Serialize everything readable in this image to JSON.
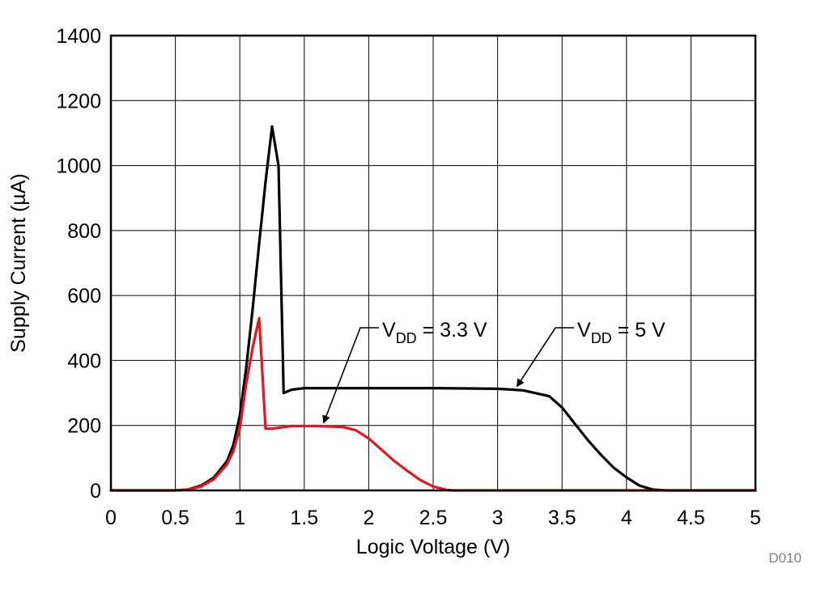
{
  "chart_data": {
    "type": "line",
    "title": "",
    "xlabel": "Logic Voltage (V)",
    "ylabel": "Supply Current (µA)",
    "xlim": [
      0,
      5
    ],
    "ylim": [
      0,
      1400
    ],
    "grid": true,
    "x_ticks": [
      0,
      0.5,
      1,
      1.5,
      2,
      2.5,
      3,
      3.5,
      4,
      4.5,
      5
    ],
    "x_tick_labels": [
      "0",
      "0.5",
      "1",
      "1.5",
      "2",
      "2.5",
      "3",
      "3.5",
      "4",
      "4.5",
      "5"
    ],
    "y_ticks": [
      0,
      200,
      400,
      600,
      800,
      1000,
      1200,
      1400
    ],
    "y_tick_labels": [
      "0",
      "200",
      "400",
      "600",
      "800",
      "1000",
      "1200",
      "1400"
    ],
    "series": [
      {
        "name": "VDD = 5 V",
        "color": "#000000",
        "x": [
          0,
          0.5,
          0.6,
          0.7,
          0.8,
          0.9,
          0.95,
          1.0,
          1.05,
          1.1,
          1.15,
          1.2,
          1.25,
          1.3,
          1.34,
          1.34,
          1.4,
          1.5,
          2.0,
          2.5,
          3.0,
          3.2,
          3.4,
          3.5,
          3.6,
          3.7,
          3.8,
          3.9,
          4.0,
          4.1,
          4.2,
          4.3,
          4.35,
          4.5,
          5.0
        ],
        "y": [
          0,
          0,
          3,
          15,
          40,
          90,
          140,
          230,
          380,
          560,
          760,
          950,
          1120,
          1000,
          300,
          300,
          310,
          315,
          315,
          315,
          313,
          308,
          290,
          255,
          205,
          155,
          110,
          70,
          40,
          15,
          3,
          0,
          0,
          0,
          0
        ]
      },
      {
        "name": "VDD = 3.3 V",
        "color": "#e8141e",
        "x": [
          0,
          0.5,
          0.6,
          0.7,
          0.8,
          0.9,
          0.95,
          1.0,
          1.05,
          1.1,
          1.15,
          1.2,
          1.25,
          1.4,
          1.6,
          1.8,
          1.9,
          2.0,
          2.1,
          2.2,
          2.3,
          2.4,
          2.5,
          2.6,
          2.65,
          2.8,
          5.0
        ],
        "y": [
          0,
          0,
          3,
          12,
          35,
          80,
          120,
          190,
          330,
          440,
          530,
          190,
          190,
          198,
          198,
          195,
          185,
          160,
          125,
          90,
          60,
          32,
          12,
          2,
          0,
          0,
          0
        ]
      }
    ],
    "annotations": [
      {
        "label": "V",
        "subscript": "DD",
        "suffix": " = 3.3 V",
        "series": "VDD = 3.3 V",
        "arrow_target": [
          1.65,
          198
        ]
      },
      {
        "label": "V",
        "subscript": "DD",
        "suffix": " = 5 V",
        "series": "VDD = 5 V",
        "arrow_target": [
          3.15,
          310
        ]
      }
    ],
    "figure_id": "D010"
  }
}
